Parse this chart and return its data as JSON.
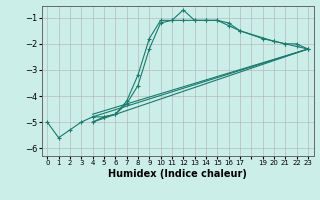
{
  "xlabel": "Humidex (Indice chaleur)",
  "ylabel": "",
  "background_color": "#cceee8",
  "grid_color": "#b0b0b0",
  "line_color": "#1a7a6e",
  "xlim": [
    -0.5,
    23.5
  ],
  "ylim": [
    -6.3,
    -0.55
  ],
  "yticks": [
    -6,
    -5,
    -4,
    -3,
    -2,
    -1
  ],
  "xtick_labels": [
    "0",
    "1",
    "2",
    "3",
    "4",
    "5",
    "6",
    "7",
    "8",
    "9",
    "10",
    "11",
    "12",
    "13",
    "14",
    "15",
    "16",
    "17",
    "",
    "19",
    "20",
    "21",
    "22",
    "23"
  ],
  "xtick_pos": [
    0,
    1,
    2,
    3,
    4,
    5,
    6,
    7,
    8,
    9,
    10,
    11,
    12,
    13,
    14,
    15,
    16,
    17,
    18,
    19,
    20,
    21,
    22,
    23
  ],
  "series": [
    {
      "x": [
        0,
        1,
        2,
        3,
        4,
        5,
        6,
        7,
        8,
        9,
        10,
        11,
        12,
        13,
        14,
        15,
        16,
        17,
        20,
        21,
        22,
        23
      ],
      "y": [
        -5.0,
        -5.6,
        -5.3,
        -5.0,
        -4.8,
        -4.8,
        -4.7,
        -4.2,
        -3.2,
        -1.8,
        -1.1,
        -1.1,
        -0.7,
        -1.1,
        -1.1,
        -1.1,
        -1.3,
        -1.5,
        -1.9,
        -2.0,
        -2.0,
        -2.2
      ],
      "marker": true
    },
    {
      "x": [
        4,
        5,
        6,
        7,
        8,
        9,
        10,
        11,
        12,
        13,
        14,
        15,
        16,
        17,
        19,
        20,
        21,
        22,
        23
      ],
      "y": [
        -5.0,
        -4.8,
        -4.7,
        -4.3,
        -3.6,
        -2.2,
        -1.2,
        -1.1,
        -1.1,
        -1.1,
        -1.1,
        -1.1,
        -1.2,
        -1.5,
        -1.8,
        -1.9,
        -2.0,
        -2.1,
        -2.2
      ],
      "marker": true
    },
    {
      "x": [
        4,
        23
      ],
      "y": [
        -5.0,
        -2.2
      ],
      "marker": false
    },
    {
      "x": [
        4,
        23
      ],
      "y": [
        -4.8,
        -2.2
      ],
      "marker": false
    },
    {
      "x": [
        4,
        23
      ],
      "y": [
        -4.7,
        -2.2
      ],
      "marker": false
    }
  ]
}
